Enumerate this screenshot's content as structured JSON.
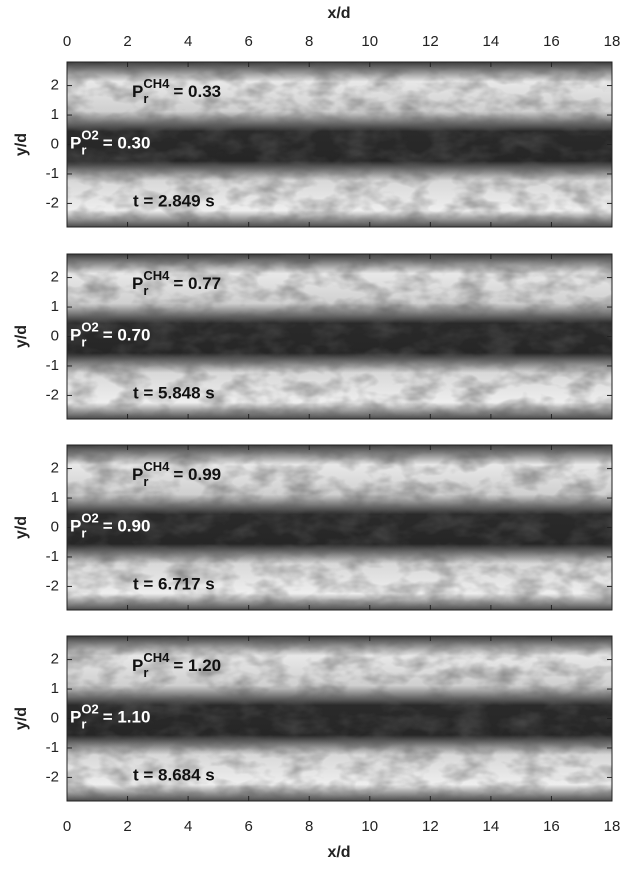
{
  "figure": {
    "xlabel": "x/d",
    "ylabel": "y/d",
    "xlim": [
      0,
      18
    ],
    "xticks": [
      0,
      2,
      4,
      6,
      8,
      10,
      12,
      14,
      16,
      18
    ],
    "ylim": [
      -2.8,
      2.8
    ],
    "yticks": [
      -2,
      -1,
      0,
      1,
      2
    ],
    "symbol": "P",
    "subscript": "r",
    "fuel": "CH4",
    "oxidizer": "O2",
    "panels": [
      {
        "ch4_label": "= 0.33",
        "o2_label": "= 0.30",
        "time": "t = 2.849 s"
      },
      {
        "ch4_label": "= 0.77",
        "o2_label": "= 0.70",
        "time": "t = 5.848 s"
      },
      {
        "ch4_label": "= 0.99",
        "o2_label": "= 0.90",
        "time": "t = 6.717 s"
      },
      {
        "ch4_label": "= 1.20",
        "o2_label": "= 1.10",
        "time": "t = 8.684 s"
      }
    ]
  }
}
